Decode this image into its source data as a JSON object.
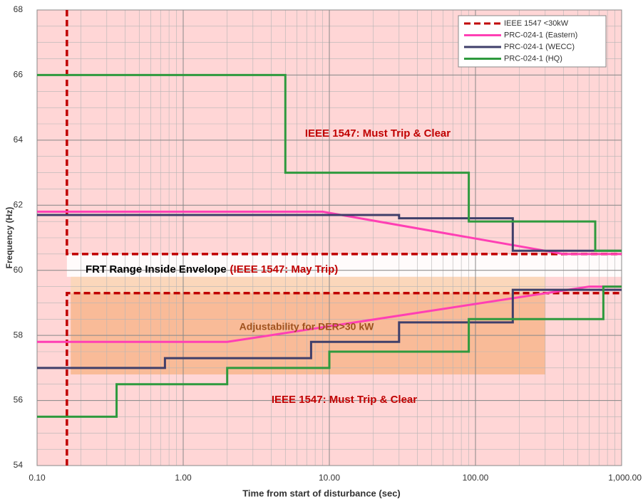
{
  "chart_data": {
    "type": "line",
    "x_label": "Time from start of disturbance (sec)",
    "y_label": "Frequency (Hz)",
    "xscale": "log",
    "xlim": [
      0.1,
      1000
    ],
    "ylim": [
      54,
      68
    ],
    "xticks": [
      {
        "value": 0.1,
        "label": "0.10"
      },
      {
        "value": 1,
        "label": "1.00"
      },
      {
        "value": 10,
        "label": "10.00"
      },
      {
        "value": 100,
        "label": "100.00"
      },
      {
        "value": 1000,
        "label": "1,000.00"
      }
    ],
    "yticks": [
      54,
      56,
      58,
      60,
      62,
      64,
      66,
      68
    ],
    "grid": true,
    "minor_grid": true,
    "legend": "upper right",
    "background": "#ffd6d6",
    "bands": [
      {
        "x": [
          0.16,
          1000
        ],
        "y": [
          59.8,
          60.5
        ],
        "color": "#ffffff"
      },
      {
        "x": [
          0.17,
          300
        ],
        "y": [
          56.8,
          59.8
        ],
        "color": "#fbd7b8"
      },
      {
        "x": [
          0.17,
          300
        ],
        "y": [
          56.8,
          59.3
        ],
        "color": "#f8b895"
      }
    ],
    "series": [
      {
        "name": "IEEE 1547 <30kW",
        "color": "#c00000",
        "dash": true,
        "x": [
          0.16,
          0.16,
          1000,
          null,
          0.16,
          0.16,
          1000
        ],
        "values": [
          68,
          60.5,
          60.5,
          null,
          54,
          59.3,
          59.3
        ]
      },
      {
        "name": "PRC-024-1 (Eastern)",
        "color": "#ff3fb4",
        "dash": false,
        "x": [
          0.1,
          9,
          400,
          1000,
          null,
          0.1,
          2,
          600,
          1000
        ],
        "values": [
          61.8,
          61.8,
          60.5,
          60.5,
          null,
          57.8,
          57.8,
          59.5,
          59.5
        ]
      },
      {
        "name": "PRC-024-1 (WECC)",
        "color": "#3f3f6a",
        "dash": false,
        "x": [
          0.1,
          30,
          30,
          180,
          180,
          1000,
          null,
          0.1,
          0.75,
          0.75,
          7.5,
          7.5,
          30,
          30,
          180,
          180,
          1000
        ],
        "values": [
          61.7,
          61.7,
          61.6,
          61.6,
          60.6,
          60.6,
          null,
          57,
          57,
          57.3,
          57.3,
          57.8,
          57.8,
          58.4,
          58.4,
          59.4,
          59.4
        ]
      },
      {
        "name": "PRC-024-1 (HQ)",
        "color": "#2e9a3e",
        "dash": false,
        "x": [
          0.1,
          5,
          5,
          90,
          90,
          660,
          660,
          1000,
          null,
          0.1,
          0.35,
          0.35,
          2,
          2,
          10,
          10,
          90,
          90,
          750,
          750,
          1000
        ],
        "values": [
          66,
          66,
          63,
          63,
          61.5,
          61.5,
          60.6,
          60.6,
          null,
          55.5,
          55.5,
          56.5,
          56.5,
          57,
          57,
          57.5,
          57.5,
          58.5,
          58.5,
          59.5,
          59.5
        ]
      }
    ],
    "annotations": [
      {
        "text": "IEEE 1547: Must Trip & Clear",
        "color": "#c00000"
      },
      {
        "text": "FRT Range Inside Envelope",
        "color": "#000000"
      },
      {
        "text": "(IEEE 1547: May Trip)",
        "color": "#c00000"
      },
      {
        "text": "Adjustability for DER>30 kW",
        "color": "#a0521e"
      },
      {
        "text": "IEEE 1547: Must Trip & Clear",
        "color": "#c00000"
      }
    ]
  }
}
